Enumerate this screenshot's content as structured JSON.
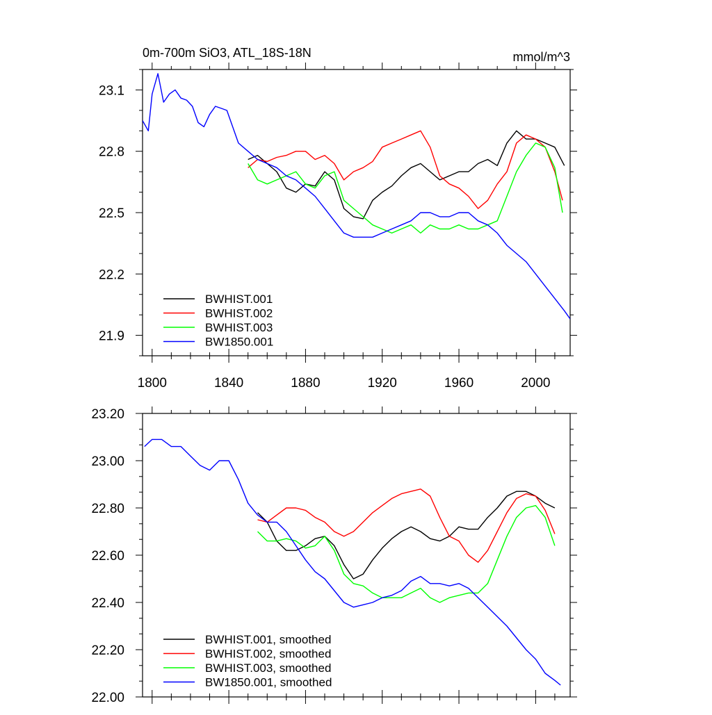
{
  "chart_data": [
    {
      "type": "line",
      "title": "0m-700m SiO3, ATL_18S-18N",
      "units": "mmol/m^3",
      "xlabel": "",
      "ylabel": "",
      "xlim": [
        1795,
        2018
      ],
      "ylim": [
        21.8,
        23.2
      ],
      "xticks": [
        1800,
        1840,
        1880,
        1920,
        1960,
        2000
      ],
      "xtick_labels": [
        "1800",
        "1840",
        "1880",
        "1920",
        "1960",
        "2000"
      ],
      "yticks": [
        21.9,
        22.2,
        22.5,
        22.8,
        23.1
      ],
      "ytick_labels": [
        "21.9",
        "22.2",
        "22.5",
        "22.8",
        "23.1"
      ],
      "legend_position": "bottom-left",
      "series": [
        {
          "name": "BWHIST.001",
          "color": "#000000",
          "x": [
            1850,
            1855,
            1860,
            1865,
            1870,
            1875,
            1880,
            1885,
            1890,
            1895,
            1900,
            1905,
            1910,
            1915,
            1920,
            1925,
            1930,
            1935,
            1940,
            1945,
            1950,
            1955,
            1960,
            1965,
            1970,
            1975,
            1980,
            1985,
            1990,
            1995,
            2000,
            2005,
            2010,
            2015
          ],
          "values": [
            22.76,
            22.78,
            22.74,
            22.7,
            22.62,
            22.6,
            22.64,
            22.63,
            22.7,
            22.66,
            22.52,
            22.48,
            22.47,
            22.56,
            22.6,
            22.63,
            22.68,
            22.72,
            22.74,
            22.7,
            22.66,
            22.68,
            22.7,
            22.7,
            22.74,
            22.76,
            22.73,
            22.84,
            22.9,
            22.86,
            22.86,
            22.84,
            22.82,
            22.73
          ]
        },
        {
          "name": "BWHIST.002",
          "color": "#ff0000",
          "x": [
            1850,
            1855,
            1860,
            1865,
            1870,
            1875,
            1880,
            1885,
            1890,
            1895,
            1900,
            1905,
            1910,
            1915,
            1920,
            1925,
            1930,
            1935,
            1940,
            1945,
            1950,
            1955,
            1960,
            1965,
            1970,
            1975,
            1980,
            1985,
            1990,
            1995,
            2000,
            2005,
            2010,
            2014
          ],
          "values": [
            22.72,
            22.76,
            22.75,
            22.77,
            22.78,
            22.8,
            22.8,
            22.76,
            22.78,
            22.74,
            22.66,
            22.7,
            22.72,
            22.75,
            22.82,
            22.84,
            22.86,
            22.88,
            22.9,
            22.82,
            22.68,
            22.64,
            22.62,
            22.58,
            22.52,
            22.56,
            22.64,
            22.7,
            22.84,
            22.88,
            22.86,
            22.82,
            22.7,
            22.56
          ]
        },
        {
          "name": "BWHIST.003",
          "color": "#00ff00",
          "x": [
            1850,
            1855,
            1860,
            1865,
            1870,
            1875,
            1880,
            1885,
            1890,
            1895,
            1900,
            1905,
            1910,
            1915,
            1920,
            1925,
            1930,
            1935,
            1940,
            1945,
            1950,
            1955,
            1960,
            1965,
            1970,
            1975,
            1980,
            1985,
            1990,
            1995,
            2000,
            2005,
            2010,
            2014
          ],
          "values": [
            22.74,
            22.66,
            22.64,
            22.66,
            22.68,
            22.7,
            22.64,
            22.62,
            22.68,
            22.7,
            22.56,
            22.52,
            22.48,
            22.44,
            22.42,
            22.4,
            22.42,
            22.44,
            22.4,
            22.44,
            22.42,
            22.42,
            22.44,
            22.42,
            22.42,
            22.44,
            22.46,
            22.58,
            22.7,
            22.78,
            22.84,
            22.82,
            22.72,
            22.5
          ]
        },
        {
          "name": "BW1850.001",
          "color": "#0000ff",
          "x": [
            1795,
            1798,
            1800,
            1803,
            1806,
            1809,
            1812,
            1815,
            1818,
            1821,
            1824,
            1827,
            1830,
            1833,
            1836,
            1839,
            1842,
            1845,
            1850,
            1855,
            1860,
            1865,
            1870,
            1875,
            1880,
            1885,
            1890,
            1895,
            1900,
            1905,
            1910,
            1915,
            1920,
            1925,
            1930,
            1935,
            1940,
            1945,
            1950,
            1955,
            1960,
            1965,
            1970,
            1975,
            1980,
            1985,
            1990,
            1995,
            2000,
            2005,
            2010,
            2015,
            2018
          ],
          "values": [
            22.95,
            22.9,
            23.08,
            23.18,
            23.04,
            23.08,
            23.1,
            23.06,
            23.05,
            23.02,
            22.94,
            22.92,
            22.98,
            23.02,
            23.01,
            23.0,
            22.92,
            22.84,
            22.8,
            22.76,
            22.74,
            22.72,
            22.68,
            22.66,
            22.62,
            22.58,
            22.52,
            22.46,
            22.4,
            22.38,
            22.38,
            22.38,
            22.4,
            22.42,
            22.44,
            22.46,
            22.5,
            22.5,
            22.48,
            22.48,
            22.5,
            22.5,
            22.46,
            22.44,
            22.4,
            22.34,
            22.3,
            22.26,
            22.2,
            22.14,
            22.08,
            22.02,
            21.98
          ]
        }
      ]
    },
    {
      "type": "line",
      "title": "",
      "xlabel": "",
      "ylabel": "",
      "xlim": [
        1795,
        2018
      ],
      "ylim": [
        22.0,
        23.2
      ],
      "xticks": [
        1800,
        1840,
        1880,
        1920,
        1960,
        2000
      ],
      "yticks": [
        22.0,
        22.2,
        22.4,
        22.6,
        22.8,
        23.0,
        23.2
      ],
      "ytick_labels": [
        "22.00",
        "22.20",
        "22.40",
        "22.60",
        "22.80",
        "23.00",
        "23.20"
      ],
      "legend_position": "bottom-left",
      "series": [
        {
          "name": "BWHIST.001, smoothed",
          "color": "#000000",
          "x": [
            1855,
            1860,
            1865,
            1870,
            1875,
            1880,
            1885,
            1890,
            1895,
            1900,
            1905,
            1910,
            1915,
            1920,
            1925,
            1930,
            1935,
            1940,
            1945,
            1950,
            1955,
            1960,
            1965,
            1970,
            1975,
            1980,
            1985,
            1990,
            1995,
            2000,
            2005,
            2010
          ],
          "values": [
            22.78,
            22.74,
            22.66,
            22.62,
            22.62,
            22.64,
            22.67,
            22.68,
            22.64,
            22.56,
            22.5,
            22.52,
            22.58,
            22.63,
            22.67,
            22.7,
            22.72,
            22.7,
            22.67,
            22.66,
            22.68,
            22.72,
            22.71,
            22.71,
            22.76,
            22.8,
            22.85,
            22.87,
            22.87,
            22.85,
            22.82,
            22.8
          ]
        },
        {
          "name": "BWHIST.002, smoothed",
          "color": "#ff0000",
          "x": [
            1855,
            1860,
            1865,
            1870,
            1875,
            1880,
            1885,
            1890,
            1895,
            1900,
            1905,
            1910,
            1915,
            1920,
            1925,
            1930,
            1935,
            1940,
            1945,
            1950,
            1955,
            1960,
            1965,
            1970,
            1975,
            1980,
            1985,
            1990,
            1995,
            2000,
            2005,
            2010
          ],
          "values": [
            22.75,
            22.74,
            22.77,
            22.8,
            22.8,
            22.79,
            22.76,
            22.74,
            22.7,
            22.68,
            22.7,
            22.74,
            22.78,
            22.81,
            22.84,
            22.86,
            22.87,
            22.88,
            22.85,
            22.76,
            22.68,
            22.66,
            22.6,
            22.57,
            22.62,
            22.7,
            22.78,
            22.84,
            22.86,
            22.85,
            22.79,
            22.69
          ]
        },
        {
          "name": "BWHIST.003, smoothed",
          "color": "#00ff00",
          "x": [
            1855,
            1860,
            1865,
            1870,
            1875,
            1880,
            1885,
            1890,
            1895,
            1900,
            1905,
            1910,
            1915,
            1920,
            1925,
            1930,
            1935,
            1940,
            1945,
            1950,
            1955,
            1960,
            1965,
            1970,
            1975,
            1980,
            1985,
            1990,
            1995,
            2000,
            2005,
            2010
          ],
          "values": [
            22.7,
            22.66,
            22.66,
            22.67,
            22.66,
            22.63,
            22.64,
            22.68,
            22.62,
            22.52,
            22.48,
            22.47,
            22.44,
            22.42,
            22.42,
            22.42,
            22.44,
            22.46,
            22.42,
            22.4,
            22.42,
            22.43,
            22.44,
            22.44,
            22.48,
            22.58,
            22.68,
            22.76,
            22.8,
            22.81,
            22.76,
            22.64
          ]
        },
        {
          "name": "BW1850.001, smoothed",
          "color": "#0000ff",
          "x": [
            1796,
            1800,
            1805,
            1810,
            1815,
            1820,
            1825,
            1830,
            1835,
            1840,
            1845,
            1850,
            1855,
            1860,
            1865,
            1870,
            1875,
            1880,
            1885,
            1890,
            1895,
            1900,
            1905,
            1910,
            1915,
            1920,
            1925,
            1930,
            1935,
            1940,
            1945,
            1950,
            1955,
            1960,
            1965,
            1970,
            1975,
            1980,
            1985,
            1990,
            1995,
            2000,
            2005,
            2010,
            2013
          ],
          "values": [
            23.06,
            23.09,
            23.09,
            23.06,
            23.06,
            23.02,
            22.98,
            22.96,
            23.0,
            23.0,
            22.92,
            22.82,
            22.77,
            22.74,
            22.74,
            22.7,
            22.64,
            22.58,
            22.53,
            22.5,
            22.45,
            22.4,
            22.38,
            22.39,
            22.4,
            22.42,
            22.43,
            22.45,
            22.49,
            22.51,
            22.48,
            22.48,
            22.47,
            22.48,
            22.46,
            22.42,
            22.38,
            22.34,
            22.3,
            22.25,
            22.2,
            22.16,
            22.1,
            22.07,
            22.05
          ]
        }
      ]
    }
  ]
}
